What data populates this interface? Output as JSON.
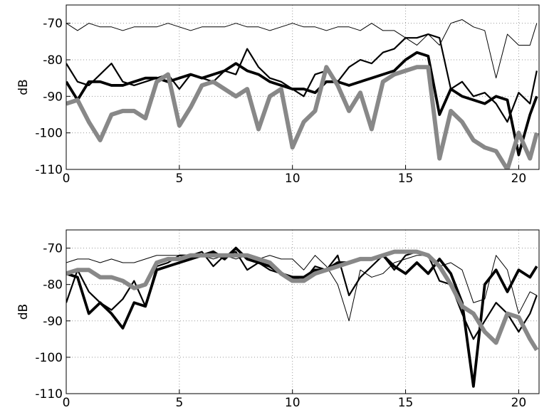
{
  "chart_data": [
    {
      "type": "line",
      "y_label": "dB",
      "grid": true,
      "x": [
        0,
        0.5,
        1,
        1.5,
        2,
        2.5,
        3,
        3.5,
        4,
        4.5,
        5,
        5.5,
        6,
        6.5,
        7,
        7.5,
        8,
        8.5,
        9,
        9.5,
        10,
        10.5,
        11,
        11.5,
        12,
        12.5,
        13,
        13.5,
        14,
        14.5,
        15,
        15.5,
        16,
        16.5,
        17,
        17.5,
        18,
        18.5,
        19,
        19.5,
        20,
        20.5,
        20.8
      ],
      "xlim": [
        0,
        20.9
      ],
      "xticks": [
        0,
        5,
        10,
        15,
        20
      ],
      "ylim": [
        -110,
        -65
      ],
      "yticks": [
        -110,
        -100,
        -90,
        -80,
        -70
      ],
      "series": [
        {
          "color": "#000000",
          "width": 1,
          "values": [
            -70,
            -72,
            -70,
            -71,
            -71,
            -72,
            -71,
            -71,
            -71,
            -70,
            -71,
            -72,
            -71,
            -71,
            -71,
            -70,
            -71,
            -71,
            -72,
            -71,
            -70,
            -71,
            -71,
            -72,
            -71,
            -71,
            -72,
            -70,
            -72,
            -72,
            -74,
            -76,
            -73,
            -76,
            -70,
            -69,
            -71,
            -72,
            -85,
            -73,
            -76,
            -76,
            -70
          ]
        },
        {
          "color": "#000000",
          "width": 2.2,
          "values": [
            -81,
            -86,
            -87,
            -84,
            -81,
            -86,
            -87,
            -86,
            -85,
            -84,
            -88,
            -84,
            -85,
            -86,
            -83,
            -84,
            -77,
            -82,
            -85,
            -86,
            -88,
            -90,
            -84,
            -83,
            -86,
            -82,
            -80,
            -81,
            -78,
            -77,
            -74,
            -74,
            -73,
            -74,
            -88,
            -86,
            -90,
            -89,
            -92,
            -97,
            -89,
            -92,
            -83
          ]
        },
        {
          "color": "#000000",
          "width": 3.8,
          "values": [
            -86,
            -91,
            -86,
            -86,
            -87,
            -87,
            -86,
            -85,
            -85,
            -86,
            -85,
            -84,
            -85,
            -84,
            -83,
            -81,
            -83,
            -84,
            -86,
            -87,
            -88,
            -88,
            -89,
            -86,
            -86,
            -87,
            -86,
            -85,
            -84,
            -83,
            -80,
            -78,
            -79,
            -95,
            -88,
            -90,
            -91,
            -92,
            -90,
            -91,
            -106,
            -95,
            -90
          ]
        },
        {
          "color": "#888888",
          "width": 6,
          "values": [
            -92,
            -91,
            -97,
            -102,
            -95,
            -94,
            -94,
            -96,
            -86,
            -84,
            -98,
            -93,
            -87,
            -86,
            -88,
            -90,
            -88,
            -99,
            -90,
            -88,
            -104,
            -97,
            -94,
            -82,
            -87,
            -94,
            -89,
            -99,
            -86,
            -84,
            -83,
            -82,
            -82,
            -107,
            -94,
            -97,
            -102,
            -104,
            -105,
            -110,
            -100,
            -107,
            -100
          ]
        }
      ]
    },
    {
      "type": "line",
      "y_label": "dB",
      "grid": true,
      "x": [
        0,
        0.5,
        1,
        1.5,
        2,
        2.5,
        3,
        3.5,
        4,
        4.5,
        5,
        5.5,
        6,
        6.5,
        7,
        7.5,
        8,
        8.5,
        9,
        9.5,
        10,
        10.5,
        11,
        11.5,
        12,
        12.5,
        13,
        13.5,
        14,
        14.5,
        15,
        15.5,
        16,
        16.5,
        17,
        17.5,
        18,
        18.5,
        19,
        19.5,
        20,
        20.5,
        20.8
      ],
      "xlim": [
        0,
        20.9
      ],
      "xticks": [
        0,
        5,
        10,
        15,
        20
      ],
      "ylim": [
        -110,
        -65
      ],
      "yticks": [
        -110,
        -100,
        -90,
        -80,
        -70
      ],
      "series": [
        {
          "color": "#000000",
          "width": 1,
          "values": [
            -74,
            -73,
            -73,
            -74,
            -73,
            -74,
            -74,
            -73,
            -72,
            -72,
            -72,
            -72,
            -72,
            -73,
            -72,
            -73,
            -72,
            -73,
            -72,
            -73,
            -73,
            -76,
            -72,
            -75,
            -80,
            -90,
            -76,
            -78,
            -77,
            -74,
            -73,
            -72,
            -72,
            -75,
            -74,
            -76,
            -85,
            -84,
            -72,
            -76,
            -88,
            -82,
            -83
          ]
        },
        {
          "color": "#000000",
          "width": 2.2,
          "values": [
            -85,
            -76,
            -82,
            -85,
            -87,
            -84,
            -79,
            -86,
            -75,
            -74,
            -72,
            -72,
            -71,
            -75,
            -72,
            -71,
            -76,
            -74,
            -76,
            -77,
            -78,
            -79,
            -75,
            -76,
            -72,
            -83,
            -78,
            -75,
            -72,
            -76,
            -72,
            -71,
            -72,
            -79,
            -80,
            -88,
            -95,
            -90,
            -85,
            -88,
            -93,
            -88,
            -83
          ]
        },
        {
          "color": "#000000",
          "width": 3.8,
          "values": [
            -77,
            -78,
            -88,
            -85,
            -88,
            -92,
            -85,
            -86,
            -76,
            -75,
            -74,
            -73,
            -72,
            -71,
            -73,
            -70,
            -73,
            -74,
            -75,
            -77,
            -78,
            -78,
            -76,
            -76,
            -74,
            -74,
            -73,
            -73,
            -72,
            -75,
            -77,
            -74,
            -77,
            -73,
            -77,
            -85,
            -108,
            -80,
            -76,
            -82,
            -76,
            -78,
            -75
          ]
        },
        {
          "color": "#888888",
          "width": 6,
          "values": [
            -77,
            -76,
            -76,
            -78,
            -78,
            -79,
            -81,
            -80,
            -74,
            -73,
            -73,
            -72,
            -72,
            -72,
            -72,
            -72,
            -72,
            -73,
            -74,
            -77,
            -79,
            -79,
            -77,
            -76,
            -75,
            -74,
            -73,
            -73,
            -72,
            -71,
            -71,
            -71,
            -72,
            -75,
            -80,
            -86,
            -88,
            -93,
            -96,
            -88,
            -89,
            -95,
            -98
          ]
        }
      ]
    }
  ]
}
